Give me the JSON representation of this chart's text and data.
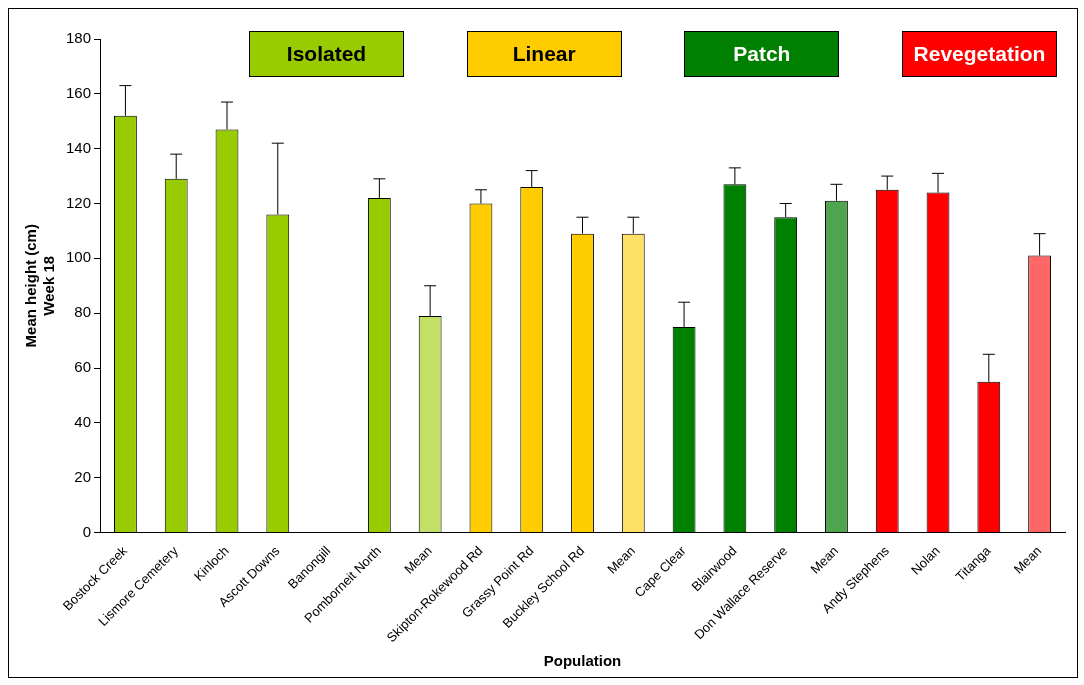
{
  "chart_data": {
    "type": "bar",
    "xlabel": "Population",
    "ylabel": "Mean height (cm)\nWeek 18",
    "categories": [
      "Bostock Creek",
      "Lismore Cemetery",
      "Kinloch",
      "Ascott Downs",
      "Banongill",
      "Pomborneit North",
      "Mean",
      "Skipton-Rokewood Rd",
      "Grassy Point Rd",
      "Buckley School Rd",
      "Mean",
      "Cape Clear",
      "Blairwood",
      "Don Wallace Reserve",
      "Mean",
      "Andy Stephens",
      "Nolan",
      "Titanga",
      "Mean"
    ],
    "stacked": true,
    "ylim": [
      0,
      180
    ],
    "yticks": [
      0,
      20,
      40,
      60,
      80,
      100,
      120,
      140,
      160,
      180
    ],
    "grid": false,
    "legend": "top",
    "series": [
      {
        "name": "Isolated",
        "color": "#99cc00",
        "colors": [
          "#99cc00",
          "#99cc00",
          "#99cc00",
          "#99cc00",
          "#99cc00",
          "#99cc00",
          "#c2e066",
          null,
          null,
          null,
          null,
          null,
          null,
          null,
          null,
          null,
          null,
          null,
          null
        ],
        "values": [
          152,
          129,
          147,
          116,
          null,
          122,
          79,
          null,
          null,
          null,
          null,
          null,
          null,
          null,
          null,
          null,
          null,
          null,
          null
        ],
        "errors": [
          [
            152,
            163
          ],
          [
            129,
            138
          ],
          [
            147,
            157
          ],
          [
            116,
            142
          ],
          null,
          [
            122,
            129
          ],
          [
            79,
            90
          ],
          null,
          null,
          null,
          null,
          null,
          null,
          null,
          null,
          null,
          null,
          null,
          null
        ]
      },
      {
        "name": "Linear",
        "color": "#ffcc00",
        "colors": [
          null,
          null,
          null,
          null,
          null,
          null,
          null,
          "#ffcc00",
          "#ffcc00",
          "#ffcc00",
          "#ffe066",
          null,
          null,
          null,
          null,
          null,
          null,
          null,
          null
        ],
        "values": [
          null,
          null,
          null,
          null,
          null,
          null,
          null,
          120,
          126,
          109,
          109,
          null,
          null,
          null,
          null,
          null,
          null,
          null,
          null
        ],
        "errors": [
          null,
          null,
          null,
          null,
          null,
          null,
          null,
          [
            120,
            125
          ],
          [
            126,
            132
          ],
          [
            109,
            115
          ],
          [
            109,
            115
          ],
          null,
          null,
          null,
          null,
          null,
          null,
          null,
          null
        ]
      },
      {
        "name": "Patch",
        "color": "#008000",
        "colors": [
          null,
          null,
          null,
          null,
          null,
          null,
          null,
          null,
          null,
          null,
          null,
          "#008000",
          "#008000",
          "#008000",
          "#4da64d",
          null,
          null,
          null,
          null
        ],
        "values": [
          null,
          null,
          null,
          null,
          null,
          null,
          null,
          null,
          null,
          null,
          null,
          75,
          127,
          115,
          121,
          null,
          null,
          null,
          null
        ],
        "errors": [
          null,
          null,
          null,
          null,
          null,
          null,
          null,
          null,
          null,
          null,
          null,
          [
            75,
            84
          ],
          [
            127,
            133
          ],
          [
            115,
            120
          ],
          [
            121,
            127
          ],
          null,
          null,
          null,
          null
        ]
      },
      {
        "name": "Revegetation",
        "color": "#ff0000",
        "colors": [
          null,
          null,
          null,
          null,
          null,
          null,
          null,
          null,
          null,
          null,
          null,
          null,
          null,
          null,
          null,
          "#ff0000",
          "#ff0000",
          "#ff0000",
          "#ff6666"
        ],
        "values": [
          null,
          null,
          null,
          null,
          null,
          null,
          null,
          null,
          null,
          null,
          null,
          null,
          null,
          null,
          null,
          125,
          124,
          55,
          101
        ],
        "errors": [
          null,
          null,
          null,
          null,
          null,
          null,
          null,
          null,
          null,
          null,
          null,
          null,
          null,
          null,
          null,
          [
            125,
            130
          ],
          [
            124,
            131
          ],
          [
            55,
            65
          ],
          [
            101,
            109
          ]
        ]
      }
    ]
  }
}
